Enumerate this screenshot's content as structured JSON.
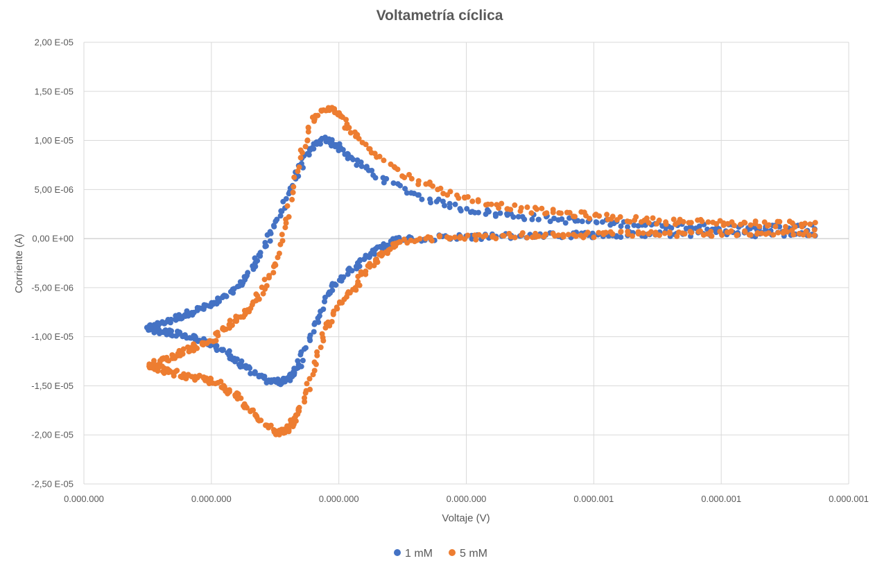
{
  "chart_data": {
    "type": "scatter",
    "title": "Voltametría cíclica",
    "xlabel": "Voltaje (V)",
    "ylabel": "Corriente (A)",
    "xlim": [
      -0.2,
      1.0
    ],
    "ylim": [
      -2.5e-05,
      2e-05
    ],
    "x_ticks": [
      -0.2,
      0.0,
      0.2,
      0.4,
      0.6,
      0.8,
      1.0
    ],
    "x_tick_labels": [
      "0.000.000",
      "0.000.000",
      "0.000.000",
      "0.000.000",
      "0.000.001",
      "0.000.001",
      "0.000.001"
    ],
    "y_ticks": [
      2e-05,
      1.5e-05,
      1e-05,
      5e-06,
      0,
      -5e-06,
      -1e-05,
      -1.5e-05,
      -2e-05,
      -2.5e-05
    ],
    "y_tick_labels": [
      "2,00 E-05",
      "1,50 E-05",
      "1,00 E-05",
      "5,00 E-06",
      "0,00 E+00",
      "-5,00 E-06",
      "-1,00 E-05",
      "-1,50 E-05",
      "-2,00 E-05",
      "-2,50 E-05"
    ],
    "grid": true,
    "legend_position": "bottom",
    "series": [
      {
        "name": "1 mM",
        "color": "#4472C4",
        "anodic_x": [
          -0.1,
          -0.08,
          -0.06,
          -0.04,
          -0.02,
          0.0,
          0.02,
          0.04,
          0.06,
          0.08,
          0.1,
          0.12,
          0.14,
          0.16,
          0.18,
          0.2,
          0.22,
          0.25,
          0.3,
          0.35,
          0.4,
          0.45,
          0.5,
          0.55,
          0.6,
          0.65,
          0.7,
          0.75,
          0.8,
          0.85,
          0.9,
          0.95
        ],
        "anodic_y": [
          -9.2e-06,
          -8.7e-06,
          -8.2e-06,
          -7.7e-06,
          -7.2e-06,
          -6.8e-06,
          -6.1e-06,
          -5e-06,
          -3.5e-06,
          -1.2e-06,
          1.2e-06,
          4.5e-06,
          7.5e-06,
          9.4e-06,
          1.01e-05,
          9.4e-06,
          8.1e-06,
          6.8e-06,
          5e-06,
          3.8e-06,
          3e-06,
          2.5e-06,
          2.2e-06,
          1.9e-06,
          1.7e-06,
          1.5e-06,
          1.4e-06,
          1.3e-06,
          1.2e-06,
          1.2e-06,
          1.1e-06,
          1.1e-06
        ],
        "cathodic_x": [
          0.95,
          0.9,
          0.85,
          0.8,
          0.75,
          0.7,
          0.65,
          0.6,
          0.55,
          0.5,
          0.45,
          0.4,
          0.35,
          0.3,
          0.28,
          0.26,
          0.24,
          0.22,
          0.2,
          0.18,
          0.16,
          0.14,
          0.13,
          0.12,
          0.11,
          0.1,
          0.08,
          0.06,
          0.04,
          0.02,
          0.0,
          -0.02,
          -0.04,
          -0.06,
          -0.08,
          -0.1
        ],
        "cathodic_y": [
          5e-07,
          5e-07,
          5e-07,
          5e-07,
          5e-07,
          5e-07,
          4e-07,
          4e-07,
          4e-07,
          3e-07,
          2e-07,
          2e-07,
          1e-07,
          0.0,
          -4e-07,
          -1.1e-06,
          -2e-06,
          -3.2e-06,
          -4.3e-06,
          -5.9e-06,
          -9e-06,
          -1.25e-05,
          -1.38e-05,
          -1.43e-05,
          -1.46e-05,
          -1.46e-05,
          -1.42e-05,
          -1.33e-05,
          -1.25e-05,
          -1.15e-05,
          -1.07e-05,
          -1.03e-05,
          -9.9e-06,
          -9.6e-06,
          -9.4e-06,
          -9.3e-06
        ]
      },
      {
        "name": "5 mM",
        "color": "#ED7D31",
        "anodic_x": [
          -0.1,
          -0.08,
          -0.06,
          -0.04,
          -0.02,
          0.0,
          0.02,
          0.04,
          0.06,
          0.08,
          0.1,
          0.12,
          0.14,
          0.16,
          0.18,
          0.2,
          0.22,
          0.25,
          0.3,
          0.35,
          0.4,
          0.45,
          0.5,
          0.55,
          0.6,
          0.65,
          0.7,
          0.75,
          0.8,
          0.85,
          0.9,
          0.95
        ],
        "anodic_y": [
          -1.29e-05,
          -1.25e-05,
          -1.2e-05,
          -1.14e-05,
          -1.09e-05,
          -1.04e-05,
          -9.2e-06,
          -8.2e-06,
          -7.2e-06,
          -5.2e-06,
          -2.3e-06,
          2.5e-06,
          8.8e-06,
          1.22e-05,
          1.33e-05,
          1.27e-05,
          1.1e-05,
          9e-06,
          6.6e-06,
          5.2e-06,
          4.1e-06,
          3.4e-06,
          2.9e-06,
          2.6e-06,
          2.3e-06,
          2e-06,
          1.8e-06,
          1.7e-06,
          1.6e-06,
          1.5e-06,
          1.5e-06,
          1.4e-06
        ],
        "cathodic_x": [
          0.95,
          0.9,
          0.85,
          0.8,
          0.75,
          0.7,
          0.65,
          0.6,
          0.55,
          0.5,
          0.45,
          0.4,
          0.35,
          0.3,
          0.28,
          0.26,
          0.24,
          0.22,
          0.2,
          0.18,
          0.16,
          0.14,
          0.13,
          0.12,
          0.11,
          0.1,
          0.08,
          0.06,
          0.04,
          0.02,
          0.0,
          -0.02,
          -0.04,
          -0.06,
          -0.08,
          -0.1
        ],
        "cathodic_y": [
          6e-07,
          6e-07,
          5e-07,
          5e-07,
          5e-07,
          5e-07,
          5e-07,
          4e-07,
          4e-07,
          3e-07,
          2e-07,
          1e-07,
          0.0,
          -3e-07,
          -9e-07,
          -2e-06,
          -3.4e-06,
          -5.4e-06,
          -6.9e-06,
          -9.2e-06,
          -1.36e-05,
          -1.72e-05,
          -1.86e-05,
          -1.94e-05,
          -1.98e-05,
          -1.97e-05,
          -1.88e-05,
          -1.74e-05,
          -1.6e-05,
          -1.51e-05,
          -1.45e-05,
          -1.42e-05,
          -1.4e-05,
          -1.37e-05,
          -1.33e-05,
          -1.3e-05
        ]
      }
    ]
  }
}
